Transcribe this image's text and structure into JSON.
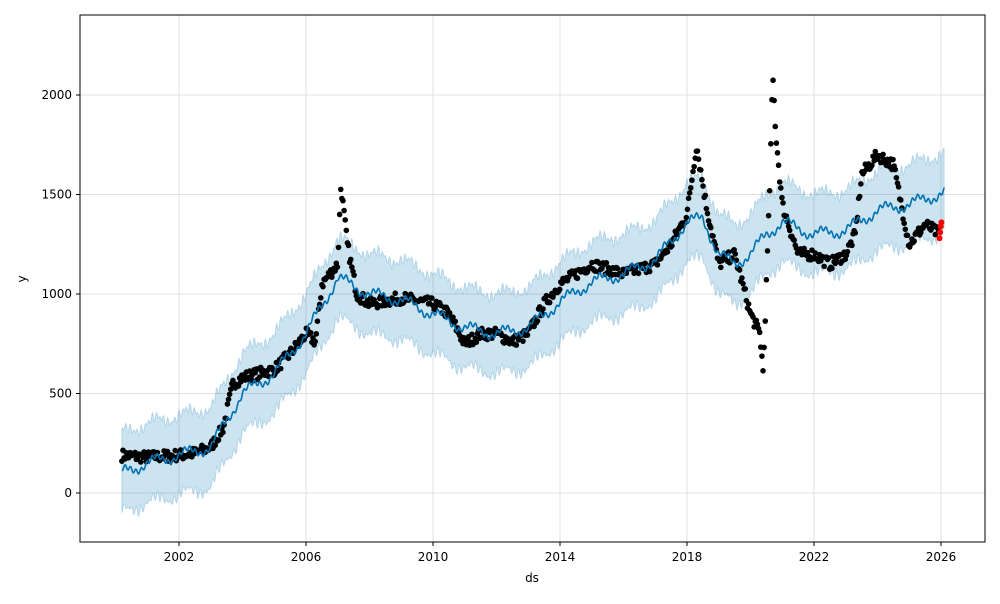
{
  "chart_data": {
    "type": "scatter",
    "title": "",
    "xlabel": "ds",
    "ylabel": "y",
    "xlim": [
      1999.0,
      2027.5
    ],
    "ylim": [
      -250,
      2350
    ],
    "grid": true,
    "x_ticks": [
      "2002",
      "2006",
      "2010",
      "2014",
      "2018",
      "2022",
      "2026"
    ],
    "x_tick_values": [
      2002,
      2006,
      2010,
      2014,
      2018,
      2022,
      2026
    ],
    "y_ticks": [
      "0",
      "500",
      "1000",
      "1500",
      "2000"
    ],
    "y_tick_values": [
      0,
      500,
      1000,
      1500,
      2000
    ],
    "series": [
      {
        "name": "observed",
        "kind": "points",
        "color": "#000000",
        "x": [
          2000.2,
          2001,
          2002,
          2002.5,
          2003,
          2003.4,
          2003.7,
          2004,
          2005,
          2005.5,
          2006,
          2006.3,
          2006.5,
          2007,
          2007.1,
          2007.3,
          2007.6,
          2008,
          2009,
          2010,
          2010.5,
          2011,
          2011.5,
          2012,
          2012.5,
          2013,
          2013.5,
          2014,
          2014.5,
          2015,
          2016,
          2017,
          2017.5,
          2018,
          2018.3,
          2018.6,
          2019,
          2019.5,
          2020,
          2020.3,
          2020.4,
          2020.6,
          2020.7,
          2020.8,
          2021,
          2021.5,
          2022,
          2022.5,
          2023,
          2023.3,
          2023.5,
          2024,
          2024.5,
          2025,
          2025.5,
          2025.95
        ],
        "y": [
          190,
          180,
          190,
          200,
          230,
          330,
          550,
          580,
          620,
          700,
          800,
          760,
          1050,
          1150,
          1550,
          1250,
          1000,
          950,
          980,
          950,
          900,
          750,
          800,
          800,
          760,
          800,
          950,
          1050,
          1100,
          1150,
          1100,
          1150,
          1250,
          1400,
          1750,
          1450,
          1150,
          1200,
          900,
          800,
          600,
          1500,
          2100,
          1800,
          1450,
          1200,
          1200,
          1150,
          1200,
          1300,
          1600,
          1700,
          1650,
          1250,
          1350,
          1300
        ]
      },
      {
        "name": "recent",
        "kind": "points",
        "color": "#ff0000",
        "x": [
          2026.0,
          2026.02,
          2026.04,
          2026.06
        ],
        "y": [
          1280,
          1310,
          1340,
          1360
        ]
      },
      {
        "name": "yhat",
        "kind": "line",
        "color": "#0072B2",
        "x": [
          2000.2,
          2001,
          2002,
          2003,
          2004,
          2005,
          2006,
          2007,
          2008,
          2009,
          2010,
          2011,
          2012,
          2013,
          2014,
          2015,
          2016,
          2017,
          2018,
          2018.5,
          2019,
          2019.5,
          2020,
          2020.5,
          2021,
          2022,
          2023,
          2024,
          2025,
          2026.1
        ],
        "y": [
          100,
          150,
          190,
          230,
          500,
          600,
          800,
          1080,
          1000,
          970,
          900,
          830,
          800,
          830,
          960,
          1060,
          1100,
          1170,
          1360,
          1380,
          1200,
          1150,
          1200,
          1300,
          1360,
          1300,
          1320,
          1420,
          1450,
          1510
        ]
      },
      {
        "name": "uncertainty interval",
        "kind": "band",
        "color": "#0072B2",
        "half_width": 200
      }
    ]
  }
}
